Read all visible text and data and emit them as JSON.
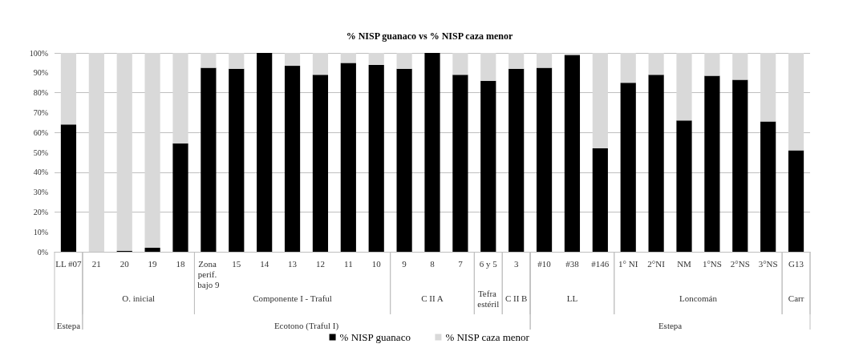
{
  "chart_data": {
    "type": "bar",
    "title": "% NISP guanaco vs % NISP caza menor",
    "stacked": true,
    "categories": [
      "LL #07",
      "21",
      "20",
      "19",
      "18",
      "Zona perif. bajo 9",
      "15",
      "14",
      "13",
      "12",
      "11",
      "10",
      "9",
      "8",
      "7",
      "6 y 5",
      "3",
      "#10",
      "#38",
      "#146",
      "1° NI",
      "2°NI",
      "NM",
      "1°NS",
      "2°NS",
      "3°NS",
      "G13"
    ],
    "series": [
      {
        "name": "% NISP guanaco",
        "color": "#000000",
        "values": [
          64,
          0,
          0.5,
          2,
          54.5,
          92.5,
          92,
          100,
          93.5,
          89,
          95,
          94,
          92,
          100,
          89,
          86,
          92,
          92.5,
          99,
          52,
          85,
          89,
          66,
          88.5,
          86.5,
          65.5,
          51
        ]
      },
      {
        "name": "% NISP caza menor",
        "color": "#d9d9d9",
        "values": [
          36,
          100,
          99.5,
          98,
          45.5,
          7.5,
          8,
          0,
          6.5,
          11,
          5,
          6,
          8,
          0,
          11,
          14,
          8,
          7.5,
          1,
          48,
          15,
          11,
          34,
          11.5,
          13.5,
          34.5,
          49
        ]
      }
    ],
    "ylim": [
      0,
      100
    ],
    "yticks": [
      {
        "value": 0,
        "label": "0%"
      },
      {
        "value": 10,
        "label": "10%"
      },
      {
        "value": 20,
        "label": "20%"
      },
      {
        "value": 30,
        "label": "30%"
      },
      {
        "value": 40,
        "label": "40%"
      },
      {
        "value": 50,
        "label": "50%"
      },
      {
        "value": 60,
        "label": "60%"
      },
      {
        "value": 70,
        "label": "70%"
      },
      {
        "value": 80,
        "label": "80%"
      },
      {
        "value": 90,
        "label": "90%"
      },
      {
        "value": 100,
        "label": "100%"
      }
    ],
    "annotations": [
      "O. inicial",
      "Componente I - Traful",
      "C II A",
      "Tefra estéril",
      "C II B",
      "LL",
      "Loncomán",
      "Carr",
      "Estepa",
      "Ecotono (Traful I)",
      "Estepa"
    ],
    "grid": "y",
    "legend": "bottom"
  }
}
